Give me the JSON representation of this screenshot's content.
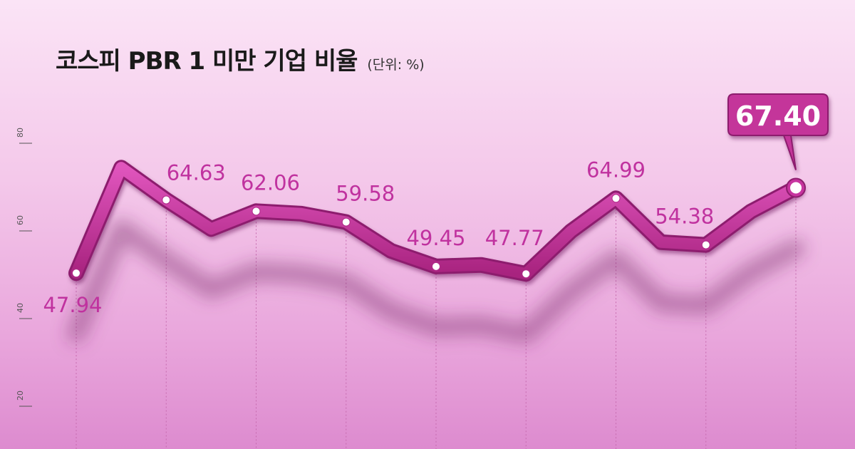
{
  "header": {
    "title": "코스피 PBR 1 미만 기업 비율",
    "unit": "(단위: %)"
  },
  "colors": {
    "line": "#c7349f",
    "label": "#c0329f",
    "highlight_box": "#c4349a"
  },
  "chart_data": {
    "type": "line",
    "title": "코스피 PBR 1 미만 기업 비율",
    "ylabel": "",
    "xlabel": "",
    "ylim": [
      20,
      80
    ],
    "yticks": [
      "80",
      "60",
      "40",
      "20"
    ],
    "grid": false,
    "series": [
      {
        "values": [
          47.94,
          72.0,
          64.63,
          58.0,
          62.06,
          61.5,
          59.58,
          53.0,
          49.45,
          49.8,
          47.77,
          57.5,
          64.99,
          55.0,
          54.38,
          62.0,
          67.4
        ],
        "markers": [
          true,
          false,
          true,
          false,
          true,
          false,
          true,
          false,
          true,
          false,
          true,
          false,
          true,
          false,
          true,
          false,
          true
        ],
        "labels": [
          "47.94",
          "",
          "64.63",
          "",
          "62.06",
          "",
          "59.58",
          "",
          "49.45",
          "",
          "47.77",
          "",
          "64.99",
          "",
          "54.38",
          "",
          "67.40"
        ]
      }
    ],
    "highlight": {
      "label": "67.40"
    }
  }
}
